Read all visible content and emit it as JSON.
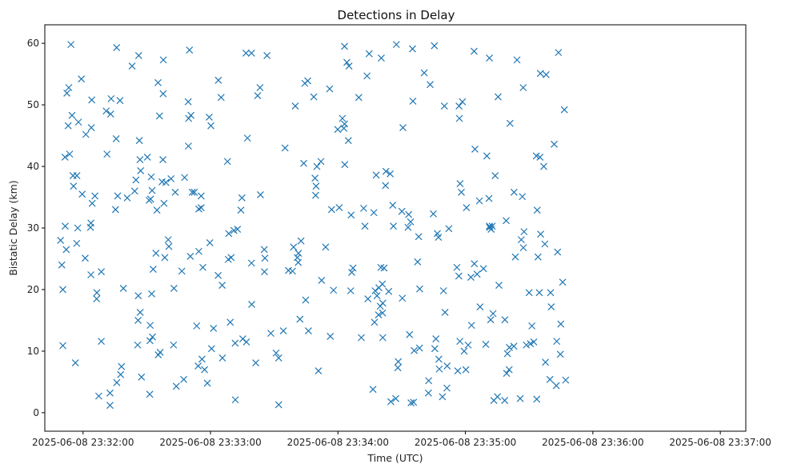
{
  "chart_data": {
    "type": "scatter",
    "title": "Detections in Delay",
    "xlabel": "Time (UTC)",
    "ylabel": "Bistatic Delay (km)",
    "marker": "x",
    "color": "#1f77b4",
    "x_unit": "seconds after 2025-06-08 23:32:00",
    "xlim": [
      -18,
      312
    ],
    "ylim": [
      -3,
      63
    ],
    "xticks": [
      {
        "value": 0,
        "label": "2025-06-08 23:32:00"
      },
      {
        "value": 60,
        "label": "2025-06-08 23:33:00"
      },
      {
        "value": 120,
        "label": "2025-06-08 23:34:00"
      },
      {
        "value": 180,
        "label": "2025-06-08 23:35:00"
      },
      {
        "value": 240,
        "label": "2025-06-08 23:36:00"
      },
      {
        "value": 300,
        "label": "2025-06-08 23:37:00"
      }
    ],
    "yticks": [
      {
        "value": 0,
        "label": "0"
      },
      {
        "value": 10,
        "label": "10"
      },
      {
        "value": 20,
        "label": "20"
      },
      {
        "value": 30,
        "label": "30"
      },
      {
        "value": 40,
        "label": "40"
      },
      {
        "value": 50,
        "label": "50"
      },
      {
        "value": 60,
        "label": "60"
      }
    ],
    "points": [
      [
        -10.6,
        28
      ],
      [
        -10,
        24
      ],
      [
        -9.5,
        20
      ],
      [
        -9.5,
        10.9
      ],
      [
        -8.5,
        41.5
      ],
      [
        -8.4,
        30.3
      ],
      [
        -7.9,
        26.5
      ],
      [
        -7.6,
        51.9
      ],
      [
        -7,
        46.6
      ],
      [
        -6.7,
        52.8
      ],
      [
        -6.3,
        42
      ],
      [
        -5.7,
        59.8
      ],
      [
        -5.2,
        48.3
      ],
      [
        -4.7,
        38.5
      ],
      [
        -4.5,
        36.8
      ],
      [
        -3.6,
        8.1
      ],
      [
        -3,
        27.5
      ],
      [
        -2.9,
        38.5
      ],
      [
        -2.5,
        30
      ],
      [
        -2.2,
        47.2
      ],
      [
        -0.8,
        54.2
      ],
      [
        -0.4,
        35.5
      ],
      [
        1,
        25.1
      ],
      [
        1.3,
        45.2
      ],
      [
        3.5,
        30.1
      ],
      [
        3.7,
        30.8
      ],
      [
        3.7,
        22.4
      ],
      [
        3.9,
        46.3
      ],
      [
        4.1,
        50.8
      ],
      [
        4.3,
        34
      ],
      [
        5.6,
        35.2
      ],
      [
        6.4,
        18.5
      ],
      [
        6.5,
        19.5
      ],
      [
        7.4,
        2.7
      ],
      [
        8.6,
        11.6
      ],
      [
        8.6,
        22.9
      ],
      [
        10.9,
        49
      ],
      [
        11.3,
        42
      ],
      [
        12.7,
        1.2
      ],
      [
        12.7,
        3.2
      ],
      [
        13,
        48.5
      ],
      [
        13.2,
        51
      ],
      [
        15.3,
        33
      ],
      [
        15.6,
        44.5
      ],
      [
        15.8,
        59.3
      ],
      [
        15.9,
        4.9
      ],
      [
        16.3,
        35.2
      ],
      [
        17.4,
        50.7
      ],
      [
        17.7,
        6.2
      ],
      [
        18.1,
        7.5
      ],
      [
        19,
        20.2
      ],
      [
        20.8,
        34.9
      ],
      [
        23.1,
        56.3
      ],
      [
        24.3,
        36
      ],
      [
        24.9,
        37.8
      ],
      [
        25.7,
        11
      ],
      [
        25.9,
        15
      ],
      [
        26,
        19
      ],
      [
        26.2,
        58
      ],
      [
        26.5,
        44.2
      ],
      [
        26.8,
        41.1
      ],
      [
        26.9,
        16.3
      ],
      [
        27.1,
        39.3
      ],
      [
        27.5,
        5.8
      ],
      [
        30.3,
        41.5
      ],
      [
        31.1,
        34.5
      ],
      [
        31.4,
        3
      ],
      [
        31.5,
        11.7
      ],
      [
        31.6,
        14.2
      ],
      [
        31.8,
        34.7
      ],
      [
        32.1,
        38.3
      ],
      [
        32.3,
        19.3
      ],
      [
        32.5,
        36.1
      ],
      [
        32.7,
        12.3
      ],
      [
        33,
        23.3
      ],
      [
        34.3,
        25.9
      ],
      [
        34.8,
        32.9
      ],
      [
        35.3,
        53.6
      ],
      [
        35.4,
        9.4
      ],
      [
        36,
        48.2
      ],
      [
        36.3,
        9.8
      ],
      [
        37.2,
        37.5
      ],
      [
        37.6,
        41.1
      ],
      [
        37.7,
        51.8
      ],
      [
        37.8,
        57.3
      ],
      [
        38.1,
        34
      ],
      [
        38.5,
        25.2
      ],
      [
        39,
        37.4
      ],
      [
        40.1,
        28.1
      ],
      [
        40.4,
        27
      ],
      [
        41.4,
        38
      ],
      [
        42.6,
        11
      ],
      [
        42.8,
        20.2
      ],
      [
        43.4,
        35.8
      ],
      [
        43.9,
        4.3
      ],
      [
        46.5,
        23
      ],
      [
        47.4,
        5.4
      ],
      [
        47.8,
        38.2
      ],
      [
        49.5,
        50.5
      ],
      [
        49.6,
        43.3
      ],
      [
        49.7,
        47.8
      ],
      [
        50.1,
        58.9
      ],
      [
        50.5,
        25.4
      ],
      [
        50.8,
        48.3
      ],
      [
        51.4,
        35.8
      ],
      [
        52.4,
        35.8
      ],
      [
        53.5,
        14.1
      ],
      [
        54.2,
        7.6
      ],
      [
        54.5,
        26.2
      ],
      [
        54.5,
        33.1
      ],
      [
        55.6,
        33.3
      ],
      [
        55.6,
        35.2
      ],
      [
        56,
        8.7
      ],
      [
        56.4,
        23.6
      ],
      [
        57.2,
        7
      ],
      [
        58.5,
        4.8
      ],
      [
        59.4,
        48
      ],
      [
        59.7,
        27.6
      ],
      [
        60.2,
        46.6
      ],
      [
        60.5,
        10.4
      ],
      [
        61.4,
        13.7
      ],
      [
        63.6,
        22.3
      ],
      [
        63.7,
        54
      ],
      [
        65,
        51.2
      ],
      [
        65.5,
        20.7
      ],
      [
        65.6,
        8.9
      ],
      [
        68,
        40.8
      ],
      [
        68.4,
        24.9
      ],
      [
        68.6,
        29.1
      ],
      [
        69.3,
        14.7
      ],
      [
        69.7,
        25.2
      ],
      [
        71,
        29.6
      ],
      [
        71.6,
        11.3
      ],
      [
        71.7,
        2.1
      ],
      [
        72.7,
        29.8
      ],
      [
        74.3,
        32.9
      ],
      [
        74.8,
        34.9
      ],
      [
        75.2,
        12
      ],
      [
        76.7,
        58.4
      ],
      [
        76.9,
        11.5
      ],
      [
        77.4,
        44.6
      ],
      [
        79.3,
        58.4
      ],
      [
        79.3,
        24.3
      ],
      [
        79.4,
        17.6
      ],
      [
        81.3,
        8.1
      ],
      [
        82.2,
        51.5
      ],
      [
        83.3,
        52.8
      ],
      [
        83.5,
        35.4
      ],
      [
        85.3,
        26.5
      ],
      [
        85.4,
        22.9
      ],
      [
        85.6,
        25.1
      ],
      [
        86.6,
        58
      ],
      [
        88.4,
        12.9
      ],
      [
        90.9,
        9.7
      ],
      [
        92.1,
        8.9
      ],
      [
        92.1,
        1.3
      ],
      [
        94.3,
        13.3
      ],
      [
        95.1,
        43
      ],
      [
        96.7,
        23.1
      ],
      [
        98.6,
        23
      ],
      [
        99.1,
        26.9
      ],
      [
        99.9,
        49.8
      ],
      [
        100.9,
        25.2
      ],
      [
        101.3,
        24.4
      ],
      [
        101.4,
        25.9
      ],
      [
        102.1,
        15.2
      ],
      [
        102.6,
        27.9
      ],
      [
        103.9,
        40.5
      ],
      [
        104.4,
        53.5
      ],
      [
        104.8,
        18.3
      ],
      [
        105.8,
        53.9
      ],
      [
        106.1,
        13.3
      ],
      [
        108.6,
        51.3
      ],
      [
        109.2,
        38.1
      ],
      [
        109.5,
        35.3
      ],
      [
        109.7,
        36.8
      ],
      [
        110.1,
        40
      ],
      [
        110.8,
        6.8
      ],
      [
        112,
        40.8
      ],
      [
        112.3,
        21.5
      ],
      [
        114.2,
        26.9
      ],
      [
        116.1,
        52.6
      ],
      [
        116.4,
        12.4
      ],
      [
        117,
        33
      ],
      [
        117.9,
        19.9
      ],
      [
        119.9,
        46
      ],
      [
        120.6,
        33.3
      ],
      [
        122.1,
        47.8
      ],
      [
        122.8,
        46.2
      ],
      [
        123.1,
        46.9
      ],
      [
        123.1,
        59.5
      ],
      [
        123.2,
        40.3
      ],
      [
        124.2,
        56.9
      ],
      [
        124.9,
        44.2
      ],
      [
        125.2,
        56.3
      ],
      [
        126,
        19.8
      ],
      [
        126.2,
        32.1
      ],
      [
        126.5,
        22.8
      ],
      [
        127.1,
        23.5
      ],
      [
        129.8,
        51.2
      ],
      [
        131,
        12.2
      ],
      [
        132.1,
        33.2
      ],
      [
        132.7,
        30.3
      ],
      [
        133.7,
        54.7
      ],
      [
        134.1,
        18.5
      ],
      [
        134.7,
        58.3
      ],
      [
        136.5,
        3.8
      ],
      [
        136.9,
        32.5
      ],
      [
        137.2,
        14.7
      ],
      [
        137.5,
        19.8
      ],
      [
        138,
        38.6
      ],
      [
        138.4,
        19
      ],
      [
        139.1,
        15.9
      ],
      [
        139.3,
        20.3
      ],
      [
        139.9,
        17.3
      ],
      [
        140.2,
        23.6
      ],
      [
        140.4,
        57.6
      ],
      [
        140.9,
        20.9
      ],
      [
        141,
        16.2
      ],
      [
        141.1,
        17.8
      ],
      [
        141.1,
        12.2
      ],
      [
        141.7,
        23.5
      ],
      [
        142.4,
        36.9
      ],
      [
        142.6,
        39.2
      ],
      [
        143.9,
        19.7
      ],
      [
        144.6,
        38.8
      ],
      [
        144.9,
        1.8
      ],
      [
        145.8,
        33.7
      ],
      [
        146.1,
        30.3
      ],
      [
        147.2,
        2.3
      ],
      [
        147.5,
        59.8
      ],
      [
        148.2,
        7.3
      ],
      [
        148.4,
        8.3
      ],
      [
        150.1,
        32.7
      ],
      [
        150.3,
        18.6
      ],
      [
        150.6,
        46.3
      ],
      [
        153,
        30.1
      ],
      [
        153.3,
        32.2
      ],
      [
        153.7,
        12.7
      ],
      [
        154.2,
        31
      ],
      [
        154.4,
        1.6
      ],
      [
        155.1,
        59.1
      ],
      [
        155.3,
        50.6
      ],
      [
        155.6,
        1.7
      ],
      [
        155.9,
        10.1
      ],
      [
        157.5,
        24.5
      ],
      [
        158,
        28.6
      ],
      [
        158.4,
        10.5
      ],
      [
        158.5,
        20.1
      ],
      [
        160.6,
        55.2
      ],
      [
        162.6,
        3.2
      ],
      [
        162.7,
        5.2
      ],
      [
        163.4,
        53.3
      ],
      [
        164.9,
        32.3
      ],
      [
        165.4,
        59.6
      ],
      [
        165.6,
        10.4
      ],
      [
        166.1,
        12
      ],
      [
        166.8,
        29.1
      ],
      [
        167.3,
        28.5
      ],
      [
        167.5,
        8.7
      ],
      [
        167.7,
        7.1
      ],
      [
        169.2,
        2.6
      ],
      [
        169.7,
        19.8
      ],
      [
        170.1,
        49.8
      ],
      [
        170.4,
        16.3
      ],
      [
        171.3,
        4
      ],
      [
        171.4,
        7.6
      ],
      [
        172.2,
        29.9
      ],
      [
        176,
        23.6
      ],
      [
        176.4,
        6.8
      ],
      [
        176.9,
        22.2
      ],
      [
        177,
        49.8
      ],
      [
        177.2,
        47.8
      ],
      [
        177.4,
        11.6
      ],
      [
        177.5,
        37.2
      ],
      [
        178.1,
        35.8
      ],
      [
        178.6,
        50.5
      ],
      [
        179.4,
        10
      ],
      [
        180.2,
        7
      ],
      [
        180.5,
        33.3
      ],
      [
        181.3,
        11
      ],
      [
        182.6,
        22
      ],
      [
        182.9,
        14.2
      ],
      [
        184.1,
        58.7
      ],
      [
        184.2,
        24.2
      ],
      [
        184.5,
        42.8
      ],
      [
        185.5,
        22.5
      ],
      [
        186.6,
        34.4
      ],
      [
        186.9,
        17.2
      ],
      [
        188.5,
        23.4
      ],
      [
        189.6,
        11.1
      ],
      [
        190.1,
        41.7
      ],
      [
        191.1,
        34.8
      ],
      [
        191.3,
        57.6
      ],
      [
        191.3,
        30.3
      ],
      [
        191.4,
        30.1
      ],
      [
        191.9,
        15.1
      ],
      [
        192.1,
        29.8
      ],
      [
        192.6,
        30.3
      ],
      [
        193,
        16.1
      ],
      [
        193.4,
        2
      ],
      [
        194,
        38.5
      ],
      [
        195.1,
        2.6
      ],
      [
        195.4,
        51.3
      ],
      [
        195.8,
        20.7
      ],
      [
        198.5,
        2
      ],
      [
        198.6,
        15.1
      ],
      [
        199.2,
        31.2
      ],
      [
        199.4,
        6.4
      ],
      [
        199.8,
        9.6
      ],
      [
        200.6,
        7
      ],
      [
        200.7,
        10.6
      ],
      [
        201,
        47
      ],
      [
        202.8,
        10.8
      ],
      [
        202.9,
        35.8
      ],
      [
        203.5,
        25.3
      ],
      [
        204.3,
        57.3
      ],
      [
        205.8,
        2.3
      ],
      [
        206.3,
        28.1
      ],
      [
        206.8,
        35.1
      ],
      [
        207.2,
        52.8
      ],
      [
        207.3,
        26.8
      ],
      [
        207.6,
        29.4
      ],
      [
        208.7,
        11
      ],
      [
        210,
        19.5
      ],
      [
        210.6,
        11.2
      ],
      [
        211.3,
        14.1
      ],
      [
        212.2,
        11.5
      ],
      [
        213.4,
        41.7
      ],
      [
        213.6,
        2.2
      ],
      [
        213.8,
        32.9
      ],
      [
        214.2,
        25.3
      ],
      [
        214.8,
        19.5
      ],
      [
        215.1,
        41.5
      ],
      [
        215.3,
        55.1
      ],
      [
        215.4,
        29
      ],
      [
        216.9,
        40
      ],
      [
        217.4,
        27.4
      ],
      [
        217.7,
        8.2
      ],
      [
        218,
        54.9
      ],
      [
        219.8,
        5.4
      ],
      [
        220.1,
        19.5
      ],
      [
        220.4,
        17.2
      ],
      [
        221.8,
        43.6
      ],
      [
        222.8,
        4.4
      ],
      [
        223,
        11.6
      ],
      [
        223.4,
        26.1
      ],
      [
        223.8,
        58.5
      ],
      [
        224.7,
        9.5
      ],
      [
        224.9,
        14.4
      ],
      [
        225.8,
        21.2
      ],
      [
        226.6,
        49.2
      ],
      [
        227.2,
        5.3
      ]
    ]
  }
}
